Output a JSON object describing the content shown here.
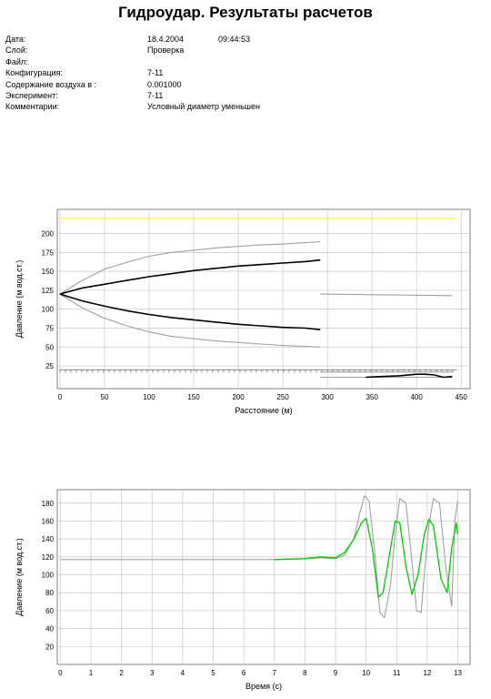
{
  "header": {
    "title": "Гидроудар. Результаты расчетов",
    "fields": [
      {
        "label": "Дата:",
        "value": "18.4.2004",
        "extra": "09:44:53"
      },
      {
        "label": "Слой:",
        "value": "Проверка",
        "extra": ""
      },
      {
        "label": "Файл:",
        "value": "",
        "extra": ""
      },
      {
        "label": "Конфигурация:",
        "value": "7-11",
        "extra": ""
      },
      {
        "label": "Содержание воздуха в :",
        "value": "0.001000",
        "extra": ""
      },
      {
        "label": "Эксперимент:",
        "value": "7-11",
        "extra": ""
      },
      {
        "label": "Комментарии:",
        "value": "Условный диаметр уменьшен",
        "extra": ""
      }
    ]
  },
  "chart_data": [
    {
      "type": "line",
      "title": "",
      "xlabel": "Расстояние (м)",
      "ylabel": "Давление (м вод.ст.)",
      "xlim": [
        -3,
        460
      ],
      "ylim": [
        -5,
        232
      ],
      "x_ticks": [
        0,
        50,
        100,
        150,
        200,
        250,
        300,
        350,
        400,
        450
      ],
      "y_ticks": [
        25,
        50,
        75,
        100,
        125,
        150,
        175,
        200
      ],
      "grid": true,
      "colors": {
        "max_envelope": "#ffff00",
        "outer_envelope": "#a0a0a0",
        "inner_envelope": "#000000",
        "ground": "#000000"
      },
      "series": [
        {
          "role": "max_envelope",
          "x": [
            0,
            445
          ],
          "y": [
            220,
            220
          ]
        },
        {
          "role": "outer_envelope",
          "x": [
            0,
            25,
            50,
            75,
            100,
            125,
            150,
            175,
            200,
            225,
            250,
            275,
            292
          ],
          "y": [
            120,
            138,
            153,
            162,
            170,
            175,
            178,
            181,
            183,
            185,
            186,
            188,
            189
          ]
        },
        {
          "role": "outer_envelope",
          "x": [
            0,
            25,
            50,
            75,
            100,
            125,
            150,
            175,
            200,
            225,
            250,
            275,
            292
          ],
          "y": [
            120,
            102,
            88,
            78,
            70,
            64,
            61,
            58,
            56,
            54,
            52,
            51,
            50
          ]
        },
        {
          "role": "inner_envelope",
          "x": [
            0,
            25,
            50,
            75,
            100,
            125,
            150,
            175,
            200,
            225,
            250,
            275,
            292
          ],
          "y": [
            120,
            128,
            133,
            138,
            143,
            147,
            151,
            154,
            157,
            159,
            161,
            163,
            165
          ]
        },
        {
          "role": "inner_envelope",
          "x": [
            0,
            25,
            50,
            75,
            100,
            125,
            150,
            175,
            200,
            225,
            250,
            275,
            292
          ],
          "y": [
            120,
            111,
            104,
            98,
            93,
            89,
            86,
            83,
            80,
            78,
            76,
            75,
            73
          ]
        },
        {
          "role": "outer_envelope",
          "x": [
            292,
            440
          ],
          "y": [
            120,
            118
          ]
        },
        {
          "role": "outer_envelope",
          "x": [
            292,
            440
          ],
          "y": [
            17,
            17
          ]
        },
        {
          "role": "outer_envelope",
          "x": [
            292,
            440
          ],
          "y": [
            10,
            10
          ]
        },
        {
          "role": "ground",
          "x": [
            343,
            360,
            380,
            400,
            410,
            420,
            430,
            440
          ],
          "y": [
            10,
            11,
            12,
            14,
            14,
            13,
            10,
            11
          ]
        }
      ],
      "hatch": {
        "x_start": 0,
        "x_end": 445,
        "y_top": 20,
        "y_bottom": 16,
        "spacing": 6
      }
    },
    {
      "type": "line",
      "title": "",
      "xlabel": "Время (с)",
      "ylabel": "Давление (м вод.ст.)",
      "xlim": [
        -0.1,
        13.4
      ],
      "ylim": [
        0,
        195
      ],
      "x_ticks": [
        0,
        1,
        2,
        3,
        4,
        5,
        6,
        7,
        8,
        9,
        10,
        11,
        12,
        13
      ],
      "y_ticks": [
        20,
        40,
        60,
        80,
        100,
        120,
        140,
        160,
        180
      ],
      "grid": true,
      "colors": {
        "computed": "#a0a0a0",
        "measured": "#00cc00"
      },
      "series": [
        {
          "role": "computed",
          "x": [
            0,
            7,
            8,
            8.5,
            9,
            9.3,
            9.6,
            9.8,
            9.95,
            10.1,
            10.3,
            10.45,
            10.6,
            10.8,
            10.95,
            11.1,
            11.3,
            11.5,
            11.65,
            11.8,
            11.9,
            12.05,
            12.2,
            12.4,
            12.6,
            12.8,
            12.9,
            13.0
          ],
          "y": [
            117,
            117,
            118,
            119,
            118,
            122,
            140,
            170,
            188,
            182,
            120,
            58,
            52,
            90,
            145,
            185,
            180,
            115,
            60,
            58,
            100,
            155,
            185,
            180,
            110,
            65,
            160,
            183
          ]
        },
        {
          "role": "measured",
          "x": [
            7,
            8,
            8.5,
            9,
            9.3,
            9.6,
            9.85,
            10.0,
            10.2,
            10.4,
            10.55,
            10.8,
            10.95,
            11.1,
            11.3,
            11.5,
            11.7,
            11.9,
            12.05,
            12.2,
            12.45,
            12.65,
            12.8,
            12.95,
            13.0
          ],
          "y": [
            117,
            118,
            120,
            119,
            125,
            140,
            158,
            163,
            130,
            75,
            80,
            130,
            160,
            158,
            110,
            78,
            100,
            145,
            162,
            155,
            95,
            80,
            130,
            158,
            145
          ]
        }
      ]
    }
  ]
}
